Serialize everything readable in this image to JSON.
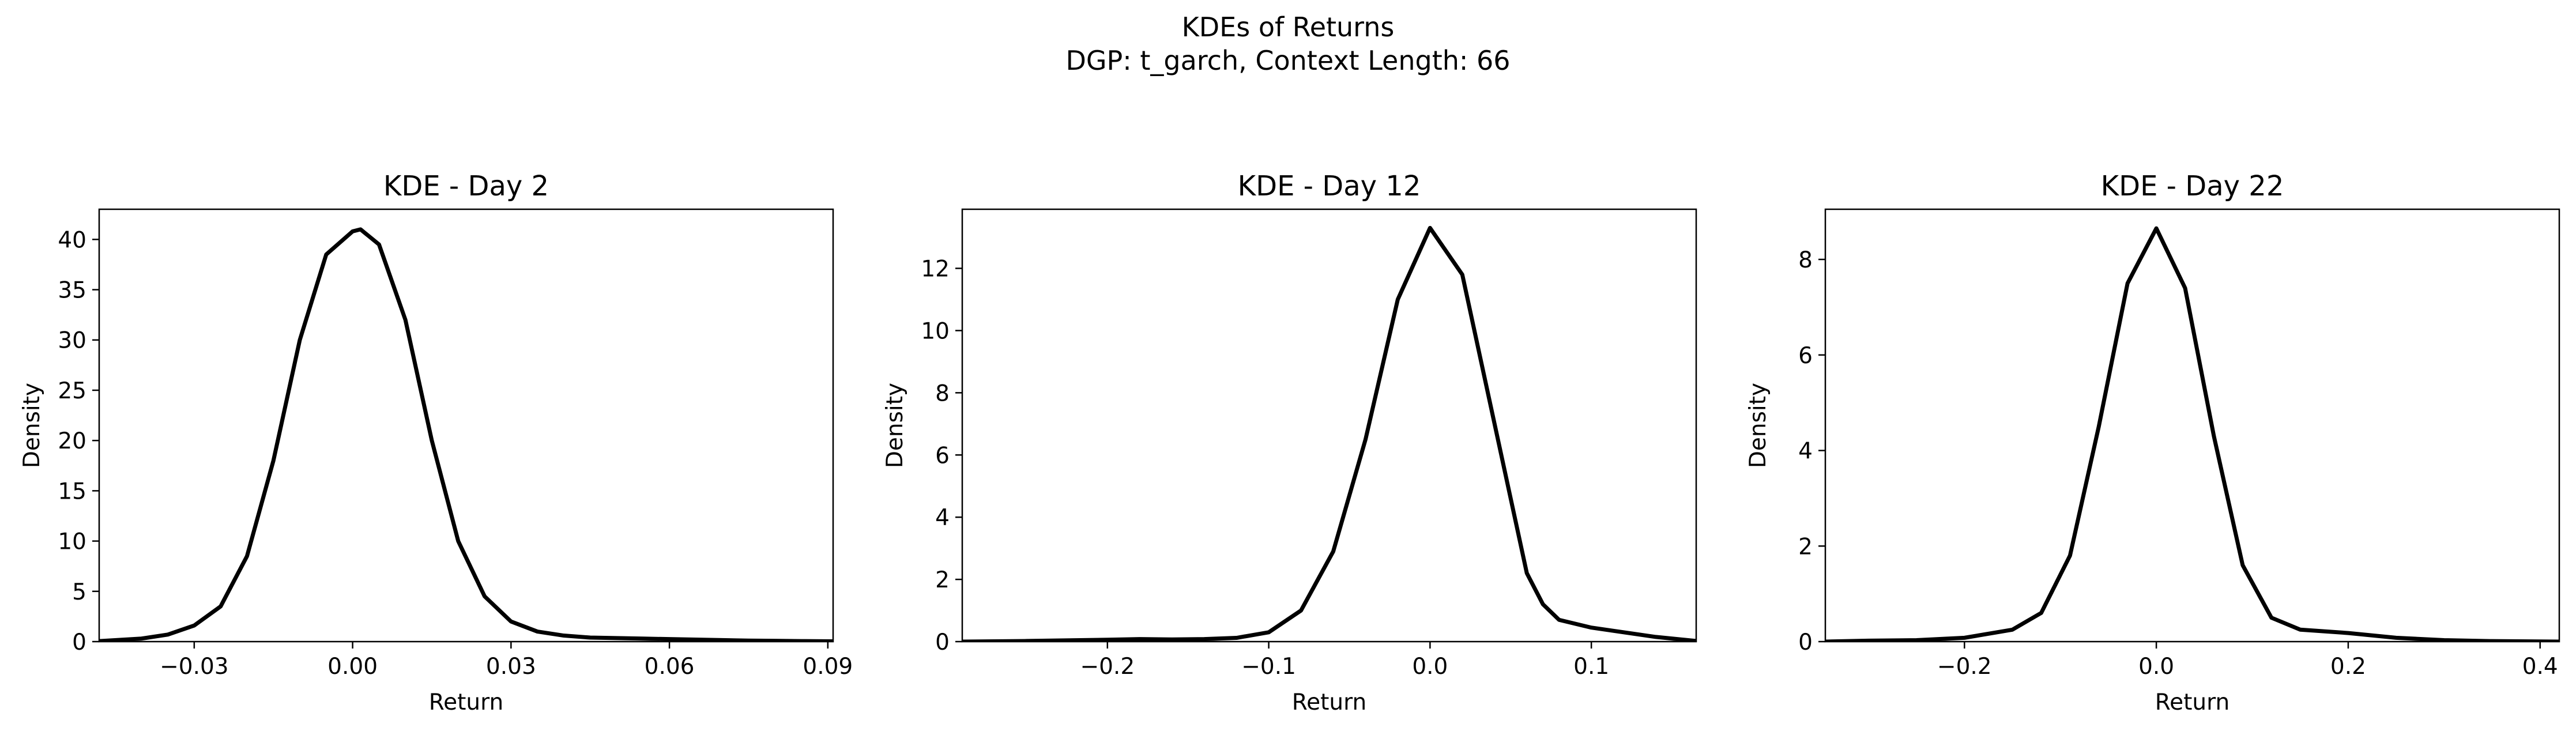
{
  "figure": {
    "suptitle_line1": "KDEs of Returns",
    "suptitle_line2": "DGP: t_garch, Context Length: 66"
  },
  "chart_data": [
    {
      "type": "line",
      "title": "KDE - Day 2",
      "xlabel": "Return",
      "ylabel": "Density",
      "xlim": [
        -0.048,
        0.091
      ],
      "ylim": [
        0,
        43
      ],
      "xticks": [
        -0.03,
        0.0,
        0.03,
        0.06,
        0.09
      ],
      "xtick_labels": [
        "−0.03",
        "0.00",
        "0.03",
        "0.06",
        "0.09"
      ],
      "yticks": [
        0,
        5,
        10,
        15,
        20,
        25,
        30,
        35,
        40
      ],
      "ytick_labels": [
        "0",
        "5",
        "10",
        "15",
        "20",
        "25",
        "30",
        "35",
        "40"
      ],
      "line_color": "#000000",
      "grid": false,
      "series": [
        {
          "x": [
            -0.048,
            -0.04,
            -0.035,
            -0.03,
            -0.025,
            -0.02,
            -0.015,
            -0.01,
            -0.005,
            0.0,
            0.0015,
            0.005,
            0.01,
            0.015,
            0.02,
            0.025,
            0.03,
            0.035,
            0.04,
            0.045,
            0.05,
            0.055,
            0.06,
            0.065,
            0.07,
            0.075,
            0.08,
            0.085,
            0.091
          ],
          "y": [
            0.05,
            0.3,
            0.7,
            1.6,
            3.5,
            8.5,
            18.0,
            30.0,
            38.5,
            40.8,
            41.0,
            39.5,
            32.0,
            20.0,
            10.0,
            4.5,
            2.0,
            1.0,
            0.6,
            0.4,
            0.35,
            0.3,
            0.25,
            0.2,
            0.15,
            0.1,
            0.08,
            0.05,
            0.03
          ]
        }
      ]
    },
    {
      "type": "line",
      "title": "KDE - Day 12",
      "xlabel": "Return",
      "ylabel": "Density",
      "xlim": [
        -0.29,
        0.165
      ],
      "ylim": [
        0,
        13.9
      ],
      "xticks": [
        -0.2,
        -0.1,
        0.0,
        0.1
      ],
      "xtick_labels": [
        "−0.2",
        "−0.1",
        "0.0",
        "0.1"
      ],
      "yticks": [
        0,
        2,
        4,
        6,
        8,
        10,
        12
      ],
      "ytick_labels": [
        "0",
        "2",
        "4",
        "6",
        "8",
        "10",
        "12"
      ],
      "line_color": "#000000",
      "grid": false,
      "series": [
        {
          "x": [
            -0.29,
            -0.25,
            -0.2,
            -0.18,
            -0.16,
            -0.14,
            -0.12,
            -0.1,
            -0.08,
            -0.06,
            -0.04,
            -0.02,
            0.0,
            0.02,
            0.04,
            0.06,
            0.07,
            0.08,
            0.1,
            0.12,
            0.14,
            0.165
          ],
          "y": [
            0.0,
            0.02,
            0.06,
            0.08,
            0.07,
            0.08,
            0.12,
            0.3,
            1.0,
            2.9,
            6.5,
            11.0,
            13.3,
            11.8,
            7.0,
            2.2,
            1.2,
            0.7,
            0.45,
            0.3,
            0.15,
            0.02
          ]
        }
      ]
    },
    {
      "type": "line",
      "title": "KDE - Day 22",
      "xlabel": "Return",
      "ylabel": "Density",
      "xlim": [
        -0.345,
        0.42
      ],
      "ylim": [
        0,
        9.05
      ],
      "xticks": [
        -0.2,
        0.0,
        0.2,
        0.4
      ],
      "xtick_labels": [
        "−0.2",
        "0.0",
        "0.2",
        "0.4"
      ],
      "yticks": [
        0,
        2,
        4,
        6,
        8
      ],
      "ytick_labels": [
        "0",
        "2",
        "4",
        "6",
        "8"
      ],
      "line_color": "#000000",
      "grid": false,
      "series": [
        {
          "x": [
            -0.345,
            -0.3,
            -0.25,
            -0.2,
            -0.15,
            -0.12,
            -0.09,
            -0.06,
            -0.03,
            0.0,
            0.03,
            0.06,
            0.09,
            0.12,
            0.15,
            0.2,
            0.25,
            0.3,
            0.35,
            0.42
          ],
          "y": [
            0.0,
            0.02,
            0.03,
            0.08,
            0.25,
            0.6,
            1.8,
            4.5,
            7.5,
            8.65,
            7.4,
            4.3,
            1.6,
            0.5,
            0.25,
            0.18,
            0.08,
            0.03,
            0.01,
            0.0
          ]
        }
      ]
    }
  ]
}
